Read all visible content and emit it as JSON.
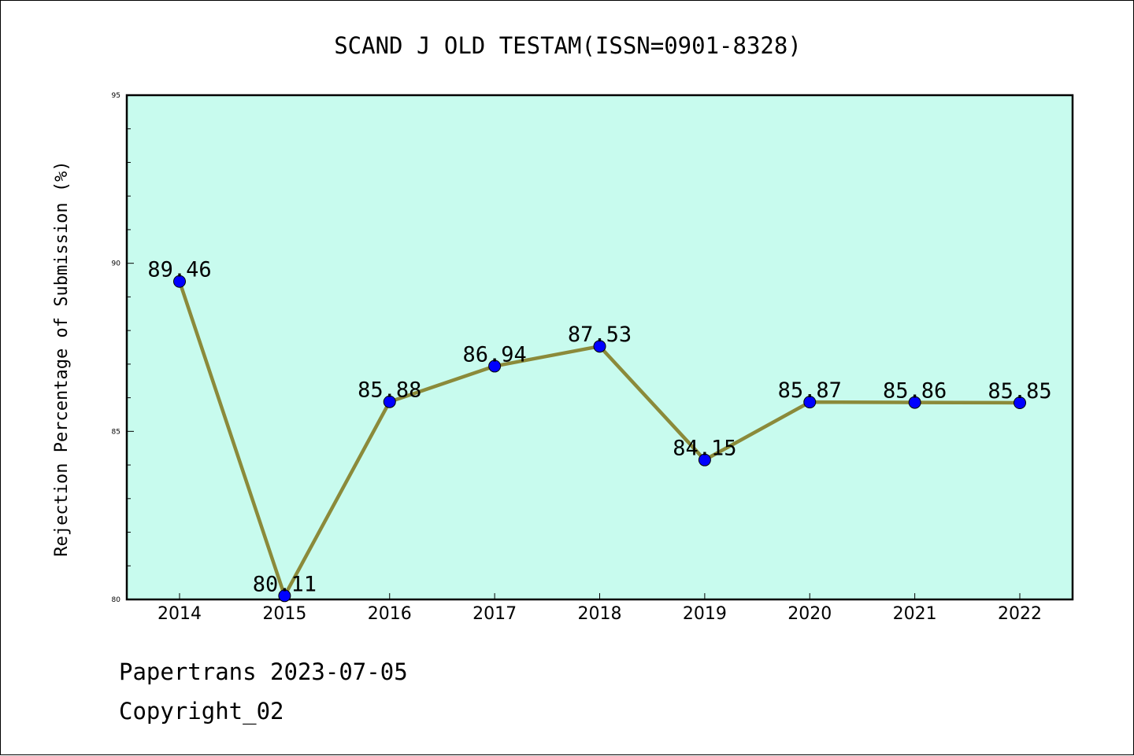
{
  "chart_data": {
    "type": "line",
    "title": "SCAND J OLD TESTAM(ISSN=0901-8328)",
    "xlabel": "",
    "ylabel": "Rejection Percentage of Submission (%)",
    "categories": [
      "2014",
      "2015",
      "2016",
      "2017",
      "2018",
      "2019",
      "2020",
      "2021",
      "2022"
    ],
    "values": [
      89.46,
      80.11,
      85.88,
      86.94,
      87.53,
      84.15,
      85.87,
      85.86,
      85.85
    ],
    "data_labels": [
      "89.46",
      "80.11",
      "85.88",
      "86.94",
      "87.53",
      "84.15",
      "85.87",
      "85.86",
      "85.85"
    ],
    "ylim": [
      80,
      95
    ],
    "y_ticks": [
      "80",
      "85",
      "90",
      "95"
    ],
    "grid": false,
    "colors": {
      "plot_background": "#c8fbee",
      "line": "#8b8a3a",
      "marker": "#0000ff"
    }
  },
  "footer": {
    "line1": "Papertrans 2023-07-05",
    "line2": "Copyright_02"
  }
}
